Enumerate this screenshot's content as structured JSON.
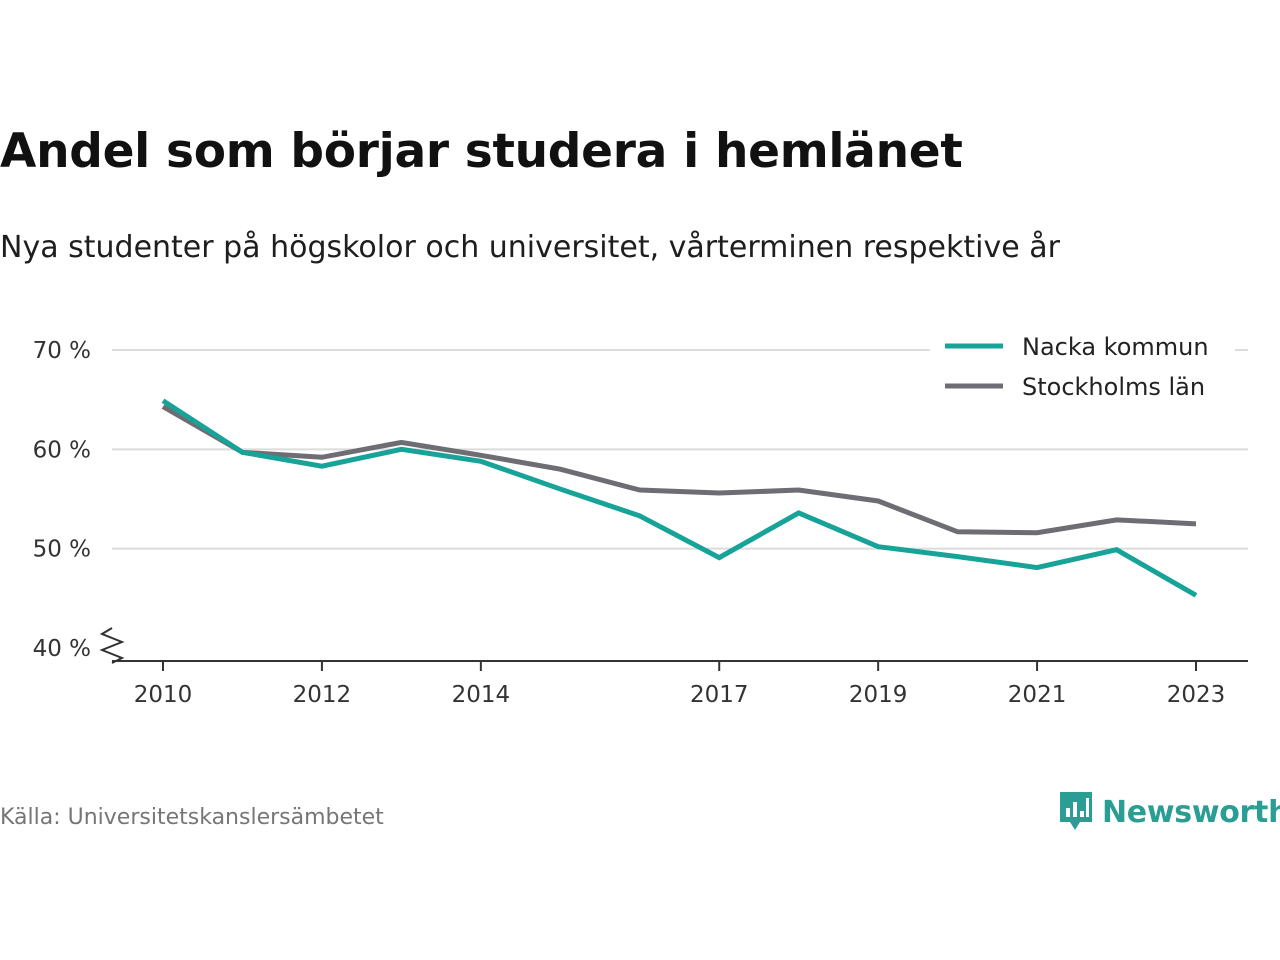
{
  "title": "Andel som börjar studera i hemlänet",
  "subtitle": "Nya studenter på högskolor och universitet, vårterminen respektive år",
  "source": "Källa: Universitetskanslersämbetet",
  "brand": {
    "name": "Newsworthy",
    "icon": "newsworthy-chart-bubble-icon",
    "color": "#2a9d95"
  },
  "chart_data": {
    "type": "line",
    "xlabel": "",
    "ylabel": "",
    "x": [
      2010,
      2011,
      2012,
      2013,
      2014,
      2015,
      2016,
      2017,
      2018,
      2019,
      2020,
      2021,
      2022,
      2023
    ],
    "x_tick_labels": [
      "2010",
      "2012",
      "2014",
      "2017",
      "2019",
      "2021",
      "2023"
    ],
    "y_tick_labels": [
      "40 %",
      "50 %",
      "60 %",
      "70 %"
    ],
    "ylim": [
      40,
      70
    ],
    "y_axis_break": true,
    "grid": true,
    "legend_position": "top-right",
    "series": [
      {
        "name": "Nacka kommun",
        "color": "#17a398",
        "values": [
          64.9,
          59.7,
          58.3,
          60.0,
          58.8,
          56.0,
          53.3,
          49.1,
          53.6,
          50.2,
          49.2,
          48.1,
          49.9,
          45.3
        ]
      },
      {
        "name": "Stockholms län",
        "color": "#6e6d73",
        "values": [
          64.3,
          59.7,
          59.2,
          60.7,
          59.4,
          58.0,
          55.9,
          55.6,
          55.9,
          54.8,
          51.7,
          51.6,
          52.9,
          52.5
        ]
      }
    ]
  }
}
